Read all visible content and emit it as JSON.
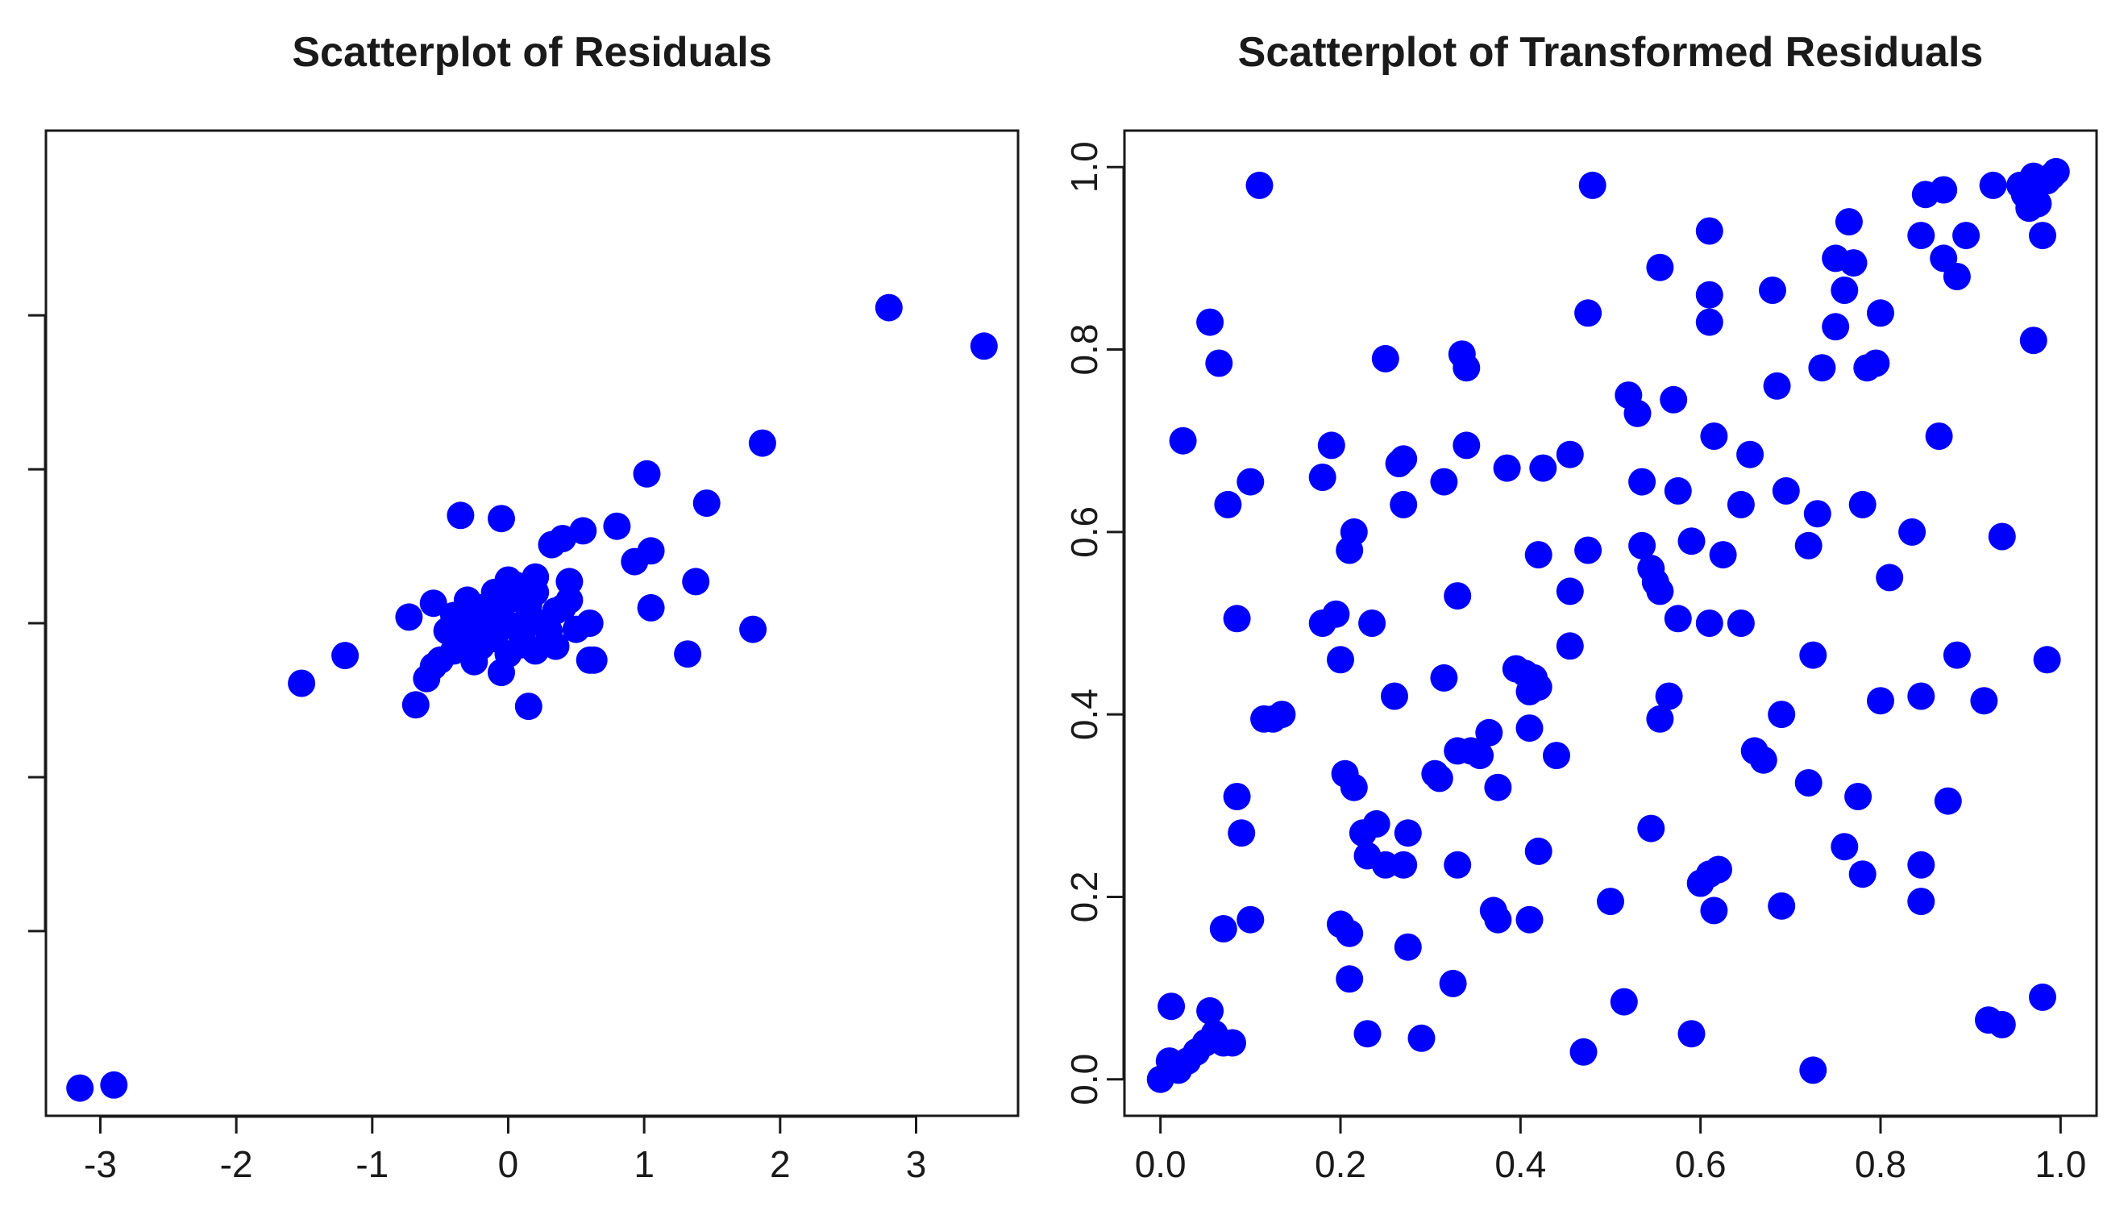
{
  "colors": {
    "point": "#0000ff",
    "axis": "#1a1a1a",
    "background": "#ffffff"
  },
  "chart_data": [
    {
      "type": "scatter",
      "title": "Scatterplot of Residuals",
      "xlabel": "",
      "ylabel": "",
      "xlim": [
        -3.4,
        3.75
      ],
      "ylim": [
        -3.2,
        3.2
      ],
      "x_ticks": [
        -3,
        -2,
        -1,
        0,
        1,
        2,
        3
      ],
      "x_tick_labels": [
        "-3",
        "-2",
        "-1",
        "0",
        "1",
        "2",
        "3"
      ],
      "y_ticks": [
        -2,
        -1,
        0,
        1,
        2
      ],
      "y_tick_labels": [],
      "grid": false,
      "points": [
        [
          -3.15,
          -3.02
        ],
        [
          -2.9,
          -3.0
        ],
        [
          2.8,
          2.05
        ],
        [
          3.5,
          1.8
        ],
        [
          1.87,
          1.17
        ],
        [
          1.02,
          0.97
        ],
        [
          1.46,
          0.78
        ],
        [
          -0.35,
          0.7
        ],
        [
          -0.05,
          0.68
        ],
        [
          0.8,
          0.63
        ],
        [
          0.55,
          0.6
        ],
        [
          0.4,
          0.55
        ],
        [
          0.32,
          0.51
        ],
        [
          1.05,
          0.47
        ],
        [
          0.93,
          0.4
        ],
        [
          1.38,
          0.27
        ],
        [
          0.45,
          0.27
        ],
        [
          0.2,
          0.3
        ],
        [
          0.0,
          0.28
        ],
        [
          1.05,
          0.1
        ],
        [
          -0.55,
          0.13
        ],
        [
          -0.73,
          0.04
        ],
        [
          1.8,
          -0.04
        ],
        [
          0.6,
          0.0
        ],
        [
          0.5,
          -0.04
        ],
        [
          1.32,
          -0.2
        ],
        [
          0.6,
          -0.24
        ],
        [
          0.63,
          -0.24
        ],
        [
          -1.2,
          -0.21
        ],
        [
          -0.5,
          -0.24
        ],
        [
          -0.55,
          -0.28
        ],
        [
          -0.6,
          -0.36
        ],
        [
          -1.52,
          -0.39
        ],
        [
          -0.68,
          -0.53
        ],
        [
          0.15,
          -0.54
        ],
        [
          -0.05,
          -0.32
        ],
        [
          -0.25,
          -0.25
        ],
        [
          0.1,
          -0.14
        ],
        [
          0.3,
          -0.1
        ],
        [
          -0.4,
          0.05
        ],
        [
          -0.3,
          0.08
        ],
        [
          -0.2,
          0.1
        ],
        [
          -0.1,
          0.12
        ],
        [
          0.0,
          0.15
        ],
        [
          0.1,
          0.18
        ],
        [
          0.2,
          0.2
        ],
        [
          0.35,
          0.08
        ],
        [
          -0.15,
          -0.05
        ],
        [
          0.05,
          -0.02
        ],
        [
          0.25,
          0.0
        ],
        [
          -0.35,
          -0.1
        ],
        [
          -0.45,
          -0.05
        ],
        [
          0.15,
          0.05
        ],
        [
          -0.05,
          0.02
        ],
        [
          0.3,
          -0.05
        ],
        [
          0.4,
          0.1
        ],
        [
          -0.2,
          -0.15
        ],
        [
          0.0,
          -0.2
        ],
        [
          0.2,
          -0.18
        ],
        [
          -0.3,
          0.15
        ],
        [
          0.1,
          -0.08
        ],
        [
          -0.1,
          0.2
        ],
        [
          0.45,
          0.15
        ],
        [
          0.05,
          0.25
        ],
        [
          -0.25,
          0.0
        ],
        [
          0.15,
          0.12
        ],
        [
          -0.4,
          -0.18
        ],
        [
          0.35,
          -0.15
        ],
        [
          -0.1,
          -0.1
        ]
      ]
    },
    {
      "type": "scatter",
      "title": "Scatterplot of Transformed Residuals",
      "xlabel": "",
      "ylabel": "",
      "xlim": [
        -0.04,
        1.04
      ],
      "ylim": [
        -0.04,
        1.04
      ],
      "x_ticks": [
        0.0,
        0.2,
        0.4,
        0.6,
        0.8,
        1.0
      ],
      "x_tick_labels": [
        "0.0",
        "0.2",
        "0.4",
        "0.6",
        "0.8",
        "1.0"
      ],
      "y_ticks": [
        0.0,
        0.2,
        0.4,
        0.6,
        0.8,
        1.0
      ],
      "y_tick_labels": [
        "0.0",
        "0.2",
        "0.4",
        "0.6",
        "0.8",
        "1.0"
      ],
      "grid": false,
      "points": [
        [
          0.0,
          0.0
        ],
        [
          0.01,
          0.02
        ],
        [
          0.02,
          0.01
        ],
        [
          0.03,
          0.02
        ],
        [
          0.04,
          0.03
        ],
        [
          0.05,
          0.04
        ],
        [
          0.06,
          0.05
        ],
        [
          0.07,
          0.04
        ],
        [
          0.08,
          0.04
        ],
        [
          0.012,
          0.08
        ],
        [
          0.055,
          0.075
        ],
        [
          0.11,
          0.98
        ],
        [
          0.48,
          0.98
        ],
        [
          0.055,
          0.83
        ],
        [
          0.065,
          0.785
        ],
        [
          0.025,
          0.7
        ],
        [
          0.1,
          0.655
        ],
        [
          0.075,
          0.63
        ],
        [
          0.085,
          0.505
        ],
        [
          0.115,
          0.395
        ],
        [
          0.125,
          0.395
        ],
        [
          0.135,
          0.4
        ],
        [
          0.085,
          0.31
        ],
        [
          0.09,
          0.27
        ],
        [
          0.07,
          0.165
        ],
        [
          0.1,
          0.175
        ],
        [
          0.2,
          0.17
        ],
        [
          0.21,
          0.16
        ],
        [
          0.21,
          0.11
        ],
        [
          0.23,
          0.05
        ],
        [
          0.29,
          0.045
        ],
        [
          0.275,
          0.145
        ],
        [
          0.325,
          0.105
        ],
        [
          0.18,
          0.66
        ],
        [
          0.19,
          0.695
        ],
        [
          0.21,
          0.58
        ],
        [
          0.215,
          0.6
        ],
        [
          0.18,
          0.5
        ],
        [
          0.195,
          0.51
        ],
        [
          0.2,
          0.46
        ],
        [
          0.235,
          0.5
        ],
        [
          0.25,
          0.79
        ],
        [
          0.26,
          0.42
        ],
        [
          0.265,
          0.675
        ],
        [
          0.27,
          0.68
        ],
        [
          0.27,
          0.63
        ],
        [
          0.205,
          0.335
        ],
        [
          0.215,
          0.32
        ],
        [
          0.225,
          0.27
        ],
        [
          0.23,
          0.245
        ],
        [
          0.24,
          0.28
        ],
        [
          0.25,
          0.235
        ],
        [
          0.27,
          0.235
        ],
        [
          0.275,
          0.27
        ],
        [
          0.335,
          0.795
        ],
        [
          0.34,
          0.78
        ],
        [
          0.34,
          0.695
        ],
        [
          0.315,
          0.655
        ],
        [
          0.33,
          0.53
        ],
        [
          0.315,
          0.44
        ],
        [
          0.305,
          0.335
        ],
        [
          0.31,
          0.33
        ],
        [
          0.33,
          0.36
        ],
        [
          0.345,
          0.36
        ],
        [
          0.355,
          0.355
        ],
        [
          0.365,
          0.38
        ],
        [
          0.375,
          0.32
        ],
        [
          0.33,
          0.235
        ],
        [
          0.37,
          0.185
        ],
        [
          0.375,
          0.175
        ],
        [
          0.41,
          0.175
        ],
        [
          0.42,
          0.25
        ],
        [
          0.385,
          0.67
        ],
        [
          0.425,
          0.67
        ],
        [
          0.455,
          0.685
        ],
        [
          0.42,
          0.575
        ],
        [
          0.475,
          0.58
        ],
        [
          0.455,
          0.535
        ],
        [
          0.455,
          0.475
        ],
        [
          0.395,
          0.45
        ],
        [
          0.405,
          0.445
        ],
        [
          0.415,
          0.44
        ],
        [
          0.41,
          0.425
        ],
        [
          0.42,
          0.43
        ],
        [
          0.41,
          0.385
        ],
        [
          0.44,
          0.355
        ],
        [
          0.47,
          0.03
        ],
        [
          0.475,
          0.84
        ],
        [
          0.5,
          0.195
        ],
        [
          0.515,
          0.085
        ],
        [
          0.52,
          0.75
        ],
        [
          0.53,
          0.73
        ],
        [
          0.535,
          0.655
        ],
        [
          0.535,
          0.585
        ],
        [
          0.545,
          0.56
        ],
        [
          0.55,
          0.545
        ],
        [
          0.555,
          0.535
        ],
        [
          0.555,
          0.395
        ],
        [
          0.565,
          0.42
        ],
        [
          0.545,
          0.275
        ],
        [
          0.555,
          0.89
        ],
        [
          0.57,
          0.745
        ],
        [
          0.575,
          0.645
        ],
        [
          0.575,
          0.505
        ],
        [
          0.59,
          0.59
        ],
        [
          0.6,
          0.215
        ],
        [
          0.61,
          0.225
        ],
        [
          0.62,
          0.23
        ],
        [
          0.615,
          0.185
        ],
        [
          0.59,
          0.05
        ],
        [
          0.61,
          0.93
        ],
        [
          0.61,
          0.86
        ],
        [
          0.61,
          0.83
        ],
        [
          0.615,
          0.705
        ],
        [
          0.625,
          0.575
        ],
        [
          0.61,
          0.5
        ],
        [
          0.645,
          0.5
        ],
        [
          0.645,
          0.63
        ],
        [
          0.655,
          0.685
        ],
        [
          0.66,
          0.36
        ],
        [
          0.67,
          0.35
        ],
        [
          0.68,
          0.865
        ],
        [
          0.685,
          0.76
        ],
        [
          0.695,
          0.645
        ],
        [
          0.69,
          0.4
        ],
        [
          0.69,
          0.19
        ],
        [
          0.72,
          0.585
        ],
        [
          0.725,
          0.465
        ],
        [
          0.72,
          0.325
        ],
        [
          0.725,
          0.01
        ],
        [
          0.73,
          0.62
        ],
        [
          0.735,
          0.78
        ],
        [
          0.75,
          0.9
        ],
        [
          0.75,
          0.825
        ],
        [
          0.76,
          0.865
        ],
        [
          0.765,
          0.94
        ],
        [
          0.77,
          0.895
        ],
        [
          0.76,
          0.255
        ],
        [
          0.775,
          0.31
        ],
        [
          0.78,
          0.225
        ],
        [
          0.78,
          0.63
        ],
        [
          0.785,
          0.78
        ],
        [
          0.795,
          0.785
        ],
        [
          0.8,
          0.84
        ],
        [
          0.8,
          0.415
        ],
        [
          0.81,
          0.55
        ],
        [
          0.835,
          0.6
        ],
        [
          0.845,
          0.925
        ],
        [
          0.85,
          0.97
        ],
        [
          0.87,
          0.975
        ],
        [
          0.87,
          0.9
        ],
        [
          0.885,
          0.88
        ],
        [
          0.895,
          0.925
        ],
        [
          0.865,
          0.705
        ],
        [
          0.845,
          0.42
        ],
        [
          0.845,
          0.235
        ],
        [
          0.845,
          0.195
        ],
        [
          0.875,
          0.305
        ],
        [
          0.885,
          0.465
        ],
        [
          0.915,
          0.415
        ],
        [
          0.935,
          0.595
        ],
        [
          0.92,
          0.065
        ],
        [
          0.935,
          0.06
        ],
        [
          0.98,
          0.09
        ],
        [
          0.925,
          0.98
        ],
        [
          0.955,
          0.98
        ],
        [
          0.96,
          0.97
        ],
        [
          0.965,
          0.955
        ],
        [
          0.97,
          0.99
        ],
        [
          0.975,
          0.96
        ],
        [
          0.985,
          0.985
        ],
        [
          0.99,
          0.99
        ],
        [
          0.995,
          0.995
        ],
        [
          0.97,
          0.81
        ],
        [
          0.98,
          0.925
        ],
        [
          0.985,
          0.46
        ]
      ]
    }
  ]
}
